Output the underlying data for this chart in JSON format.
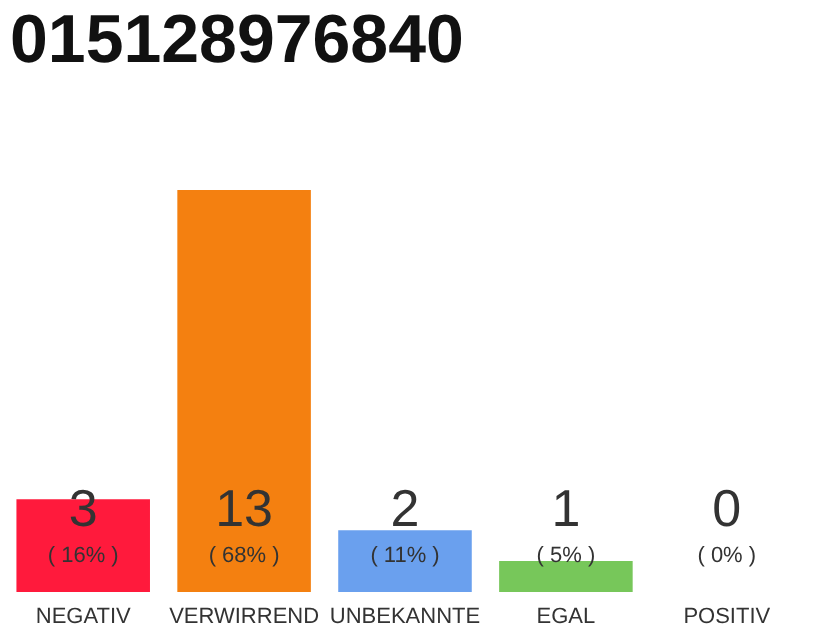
{
  "chart_data": {
    "type": "bar",
    "title": "015128976840",
    "categories": [
      "NEGATIV",
      "VERWIRREND",
      "UNBEKANNTE",
      "EGAL",
      "POSITIV"
    ],
    "values": [
      3,
      13,
      2,
      1,
      0
    ],
    "colors": [
      "#ff1a3c",
      "#f48010",
      "#6aa0ee",
      "#77c75a",
      "#b0b0b0"
    ],
    "data_labels": true,
    "annotations": [
      "( 16% )",
      "( 68% )",
      "( 11% )",
      "( 5% )",
      "( 0% )"
    ]
  }
}
